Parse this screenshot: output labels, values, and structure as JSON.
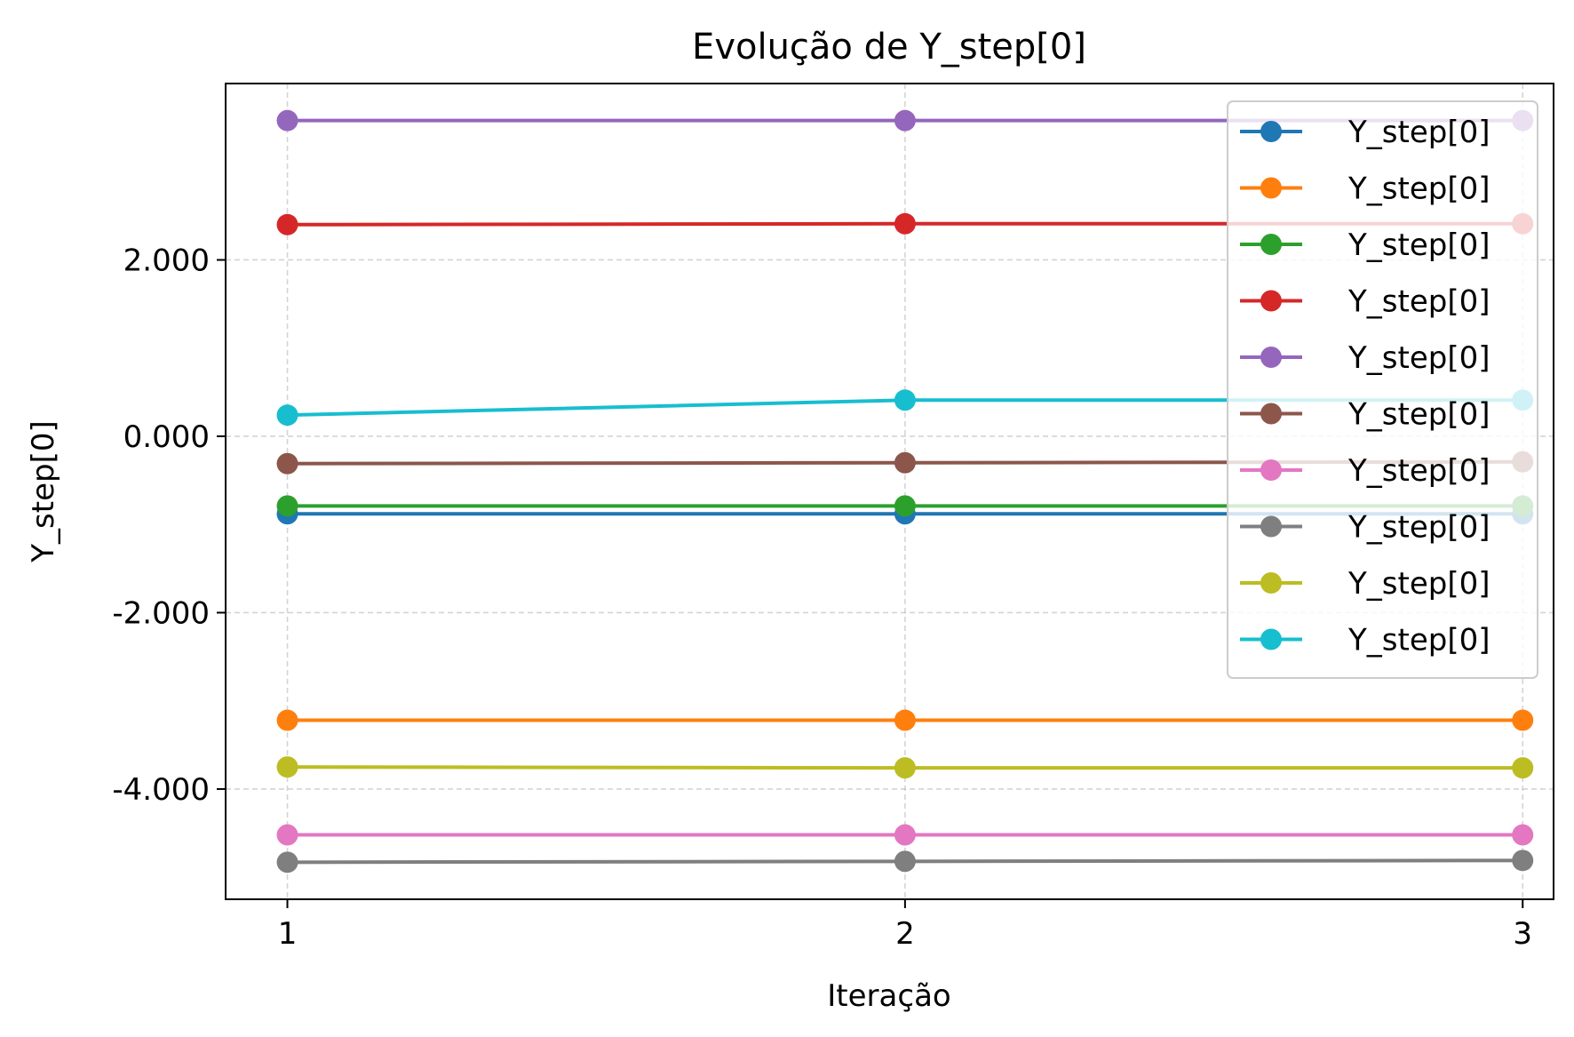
{
  "chart_data": {
    "type": "line",
    "title": "Evolução de Y_step[0]",
    "xlabel": "Iteração",
    "ylabel": "Y_step[0]",
    "x": [
      1,
      2,
      3
    ],
    "x_ticks": [
      1,
      2,
      3
    ],
    "x_tick_labels": [
      "1",
      "2",
      "3"
    ],
    "xlim": [
      0.9,
      3.05
    ],
    "y_ticks": [
      2,
      0,
      -2,
      -4
    ],
    "y_tick_labels": [
      "2.000",
      "0.000",
      "-2.000",
      "-4.000"
    ],
    "ylim": [
      -5.25,
      4.0
    ],
    "grid": true,
    "legend_position": "top-right",
    "series": [
      {
        "name": "Y_step[0]",
        "color": "#1f77b4",
        "values": [
          -0.88,
          -0.88,
          -0.88
        ]
      },
      {
        "name": "Y_step[0]",
        "color": "#ff7f0e",
        "values": [
          -3.22,
          -3.22,
          -3.22
        ]
      },
      {
        "name": "Y_step[0]",
        "color": "#2ca02c",
        "values": [
          -0.79,
          -0.79,
          -0.79
        ]
      },
      {
        "name": "Y_step[0]",
        "color": "#d62728",
        "values": [
          2.4,
          2.41,
          2.41
        ]
      },
      {
        "name": "Y_step[0]",
        "color": "#9467bd",
        "values": [
          3.58,
          3.58,
          3.58
        ]
      },
      {
        "name": "Y_step[0]",
        "color": "#8c564b",
        "values": [
          -0.31,
          -0.3,
          -0.29
        ]
      },
      {
        "name": "Y_step[0]",
        "color": "#e377c2",
        "values": [
          -4.52,
          -4.52,
          -4.52
        ]
      },
      {
        "name": "Y_step[0]",
        "color": "#7f7f7f",
        "values": [
          -4.83,
          -4.82,
          -4.81
        ]
      },
      {
        "name": "Y_step[0]",
        "color": "#bcbd22",
        "values": [
          -3.75,
          -3.76,
          -3.76
        ]
      },
      {
        "name": "Y_step[0]",
        "color": "#17becf",
        "values": [
          0.24,
          0.41,
          0.41
        ]
      }
    ]
  }
}
